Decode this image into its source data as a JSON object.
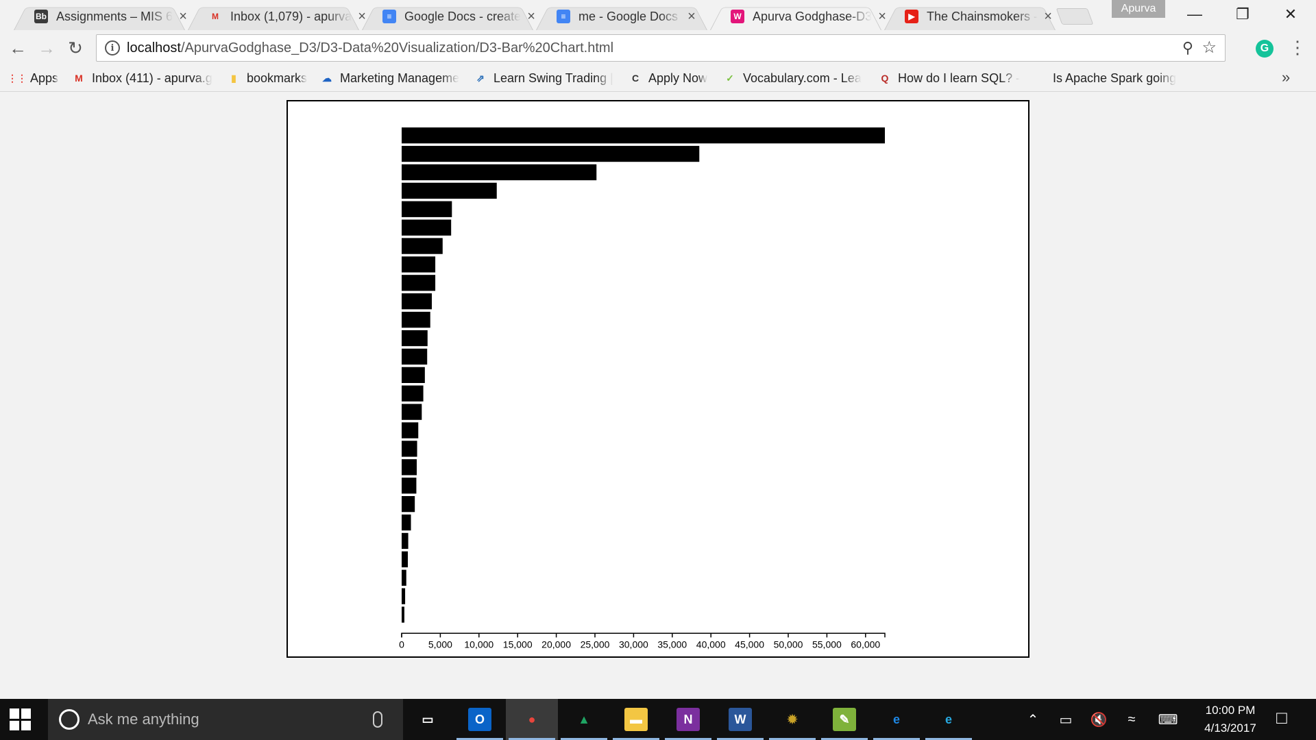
{
  "browser": {
    "tabs": [
      {
        "title": "Assignments – MIS 6",
        "favicon": "Bb",
        "favicon_color": "#3b3b3b",
        "favicon_text_color": "#ffffff",
        "active": false
      },
      {
        "title": "Inbox (1,079) - apurva",
        "favicon": "M",
        "favicon_color": "transparent",
        "favicon_text_color": "#d93025",
        "active": false
      },
      {
        "title": "Google Docs - create",
        "favicon": "≡",
        "favicon_color": "#4285f4",
        "favicon_text_color": "#ffffff",
        "active": false
      },
      {
        "title": "me - Google Docs",
        "favicon": "≡",
        "favicon_color": "#4285f4",
        "favicon_text_color": "#ffffff",
        "active": false
      },
      {
        "title": "Apurva Godghase-D3",
        "favicon": "W",
        "favicon_color": "#e3157a",
        "favicon_text_color": "#ffffff",
        "active": true
      },
      {
        "title": "The Chainsmokers -",
        "favicon": "▶",
        "favicon_color": "#e62117",
        "favicon_text_color": "#ffffff",
        "active": false
      }
    ],
    "tab_close_glyph": "×",
    "profile_name": "Apurva",
    "url_host": "localhost",
    "url_path": "/ApurvaGodghase_D3/D3-Data%20Visualization/D3-Bar%20Chart.html",
    "bookmarks": [
      {
        "label": "Apps",
        "icon": "⋮⋮",
        "icon_color": "#e8453c"
      },
      {
        "label": "Inbox (411) - apurva.g",
        "icon": "M",
        "icon_color": "#d93025"
      },
      {
        "label": "bookmarks",
        "icon": "▮",
        "icon_color": "#f4c542"
      },
      {
        "label": "Marketing Manageme",
        "icon": "☁",
        "icon_color": "#1e63c4"
      },
      {
        "label": "Learn Swing Trading |",
        "icon": "⇗",
        "icon_color": "#2a6fb8"
      },
      {
        "label": "Apply Now",
        "icon": "C",
        "icon_color": "#333333"
      },
      {
        "label": "Vocabulary.com - Lea",
        "icon": "✓",
        "icon_color": "#7cc142"
      },
      {
        "label": "How do I learn SQL? -",
        "icon": "Q",
        "icon_color": "#b92b27"
      },
      {
        "label": "Is Apache Spark going",
        "icon": "",
        "icon_color": "#999999"
      }
    ],
    "bookmarks_more": "»"
  },
  "chart_data": {
    "type": "bar",
    "orientation": "horizontal",
    "values": [
      62500,
      38500,
      25200,
      12300,
      6500,
      6400,
      5300,
      4350,
      4350,
      3900,
      3700,
      3350,
      3300,
      3000,
      2800,
      2600,
      2150,
      2000,
      1950,
      1900,
      1700,
      1200,
      850,
      800,
      600,
      450,
      350
    ],
    "xlim": [
      0,
      62500
    ],
    "xticks": [
      0,
      5000,
      10000,
      15000,
      20000,
      25000,
      30000,
      35000,
      40000,
      45000,
      50000,
      55000,
      60000
    ],
    "tick_labels": [
      "0",
      "5,000",
      "10,000",
      "15,000",
      "20,000",
      "25,000",
      "30,000",
      "35,000",
      "40,000",
      "45,000",
      "50,000",
      "55,000",
      "60,000"
    ],
    "bar_color": "#000000",
    "grid": false,
    "title": "",
    "xlabel": "",
    "ylabel": ""
  },
  "taskbar": {
    "search_placeholder": "Ask me anything",
    "apps": [
      {
        "name": "task-view",
        "glyph": "▭",
        "bg": "transparent"
      },
      {
        "name": "outlook",
        "glyph": "O",
        "bg": "#0a64c8"
      },
      {
        "name": "chrome",
        "glyph": "●",
        "bg": "transparent"
      },
      {
        "name": "google-drive",
        "glyph": "▲",
        "bg": "transparent"
      },
      {
        "name": "file-explorer",
        "glyph": "▬",
        "bg": "#f3c643"
      },
      {
        "name": "onenote",
        "glyph": "N",
        "bg": "#7b2f9e"
      },
      {
        "name": "word",
        "glyph": "W",
        "bg": "#2b579a"
      },
      {
        "name": "settings-app",
        "glyph": "✹",
        "bg": "transparent"
      },
      {
        "name": "notepad-plus",
        "glyph": "✎",
        "bg": "#7fb23b"
      },
      {
        "name": "edge",
        "glyph": "e",
        "bg": "transparent"
      },
      {
        "name": "internet-explorer",
        "glyph": "e",
        "bg": "transparent"
      }
    ],
    "clock_time": "10:00 PM",
    "clock_date": "4/13/2017"
  }
}
